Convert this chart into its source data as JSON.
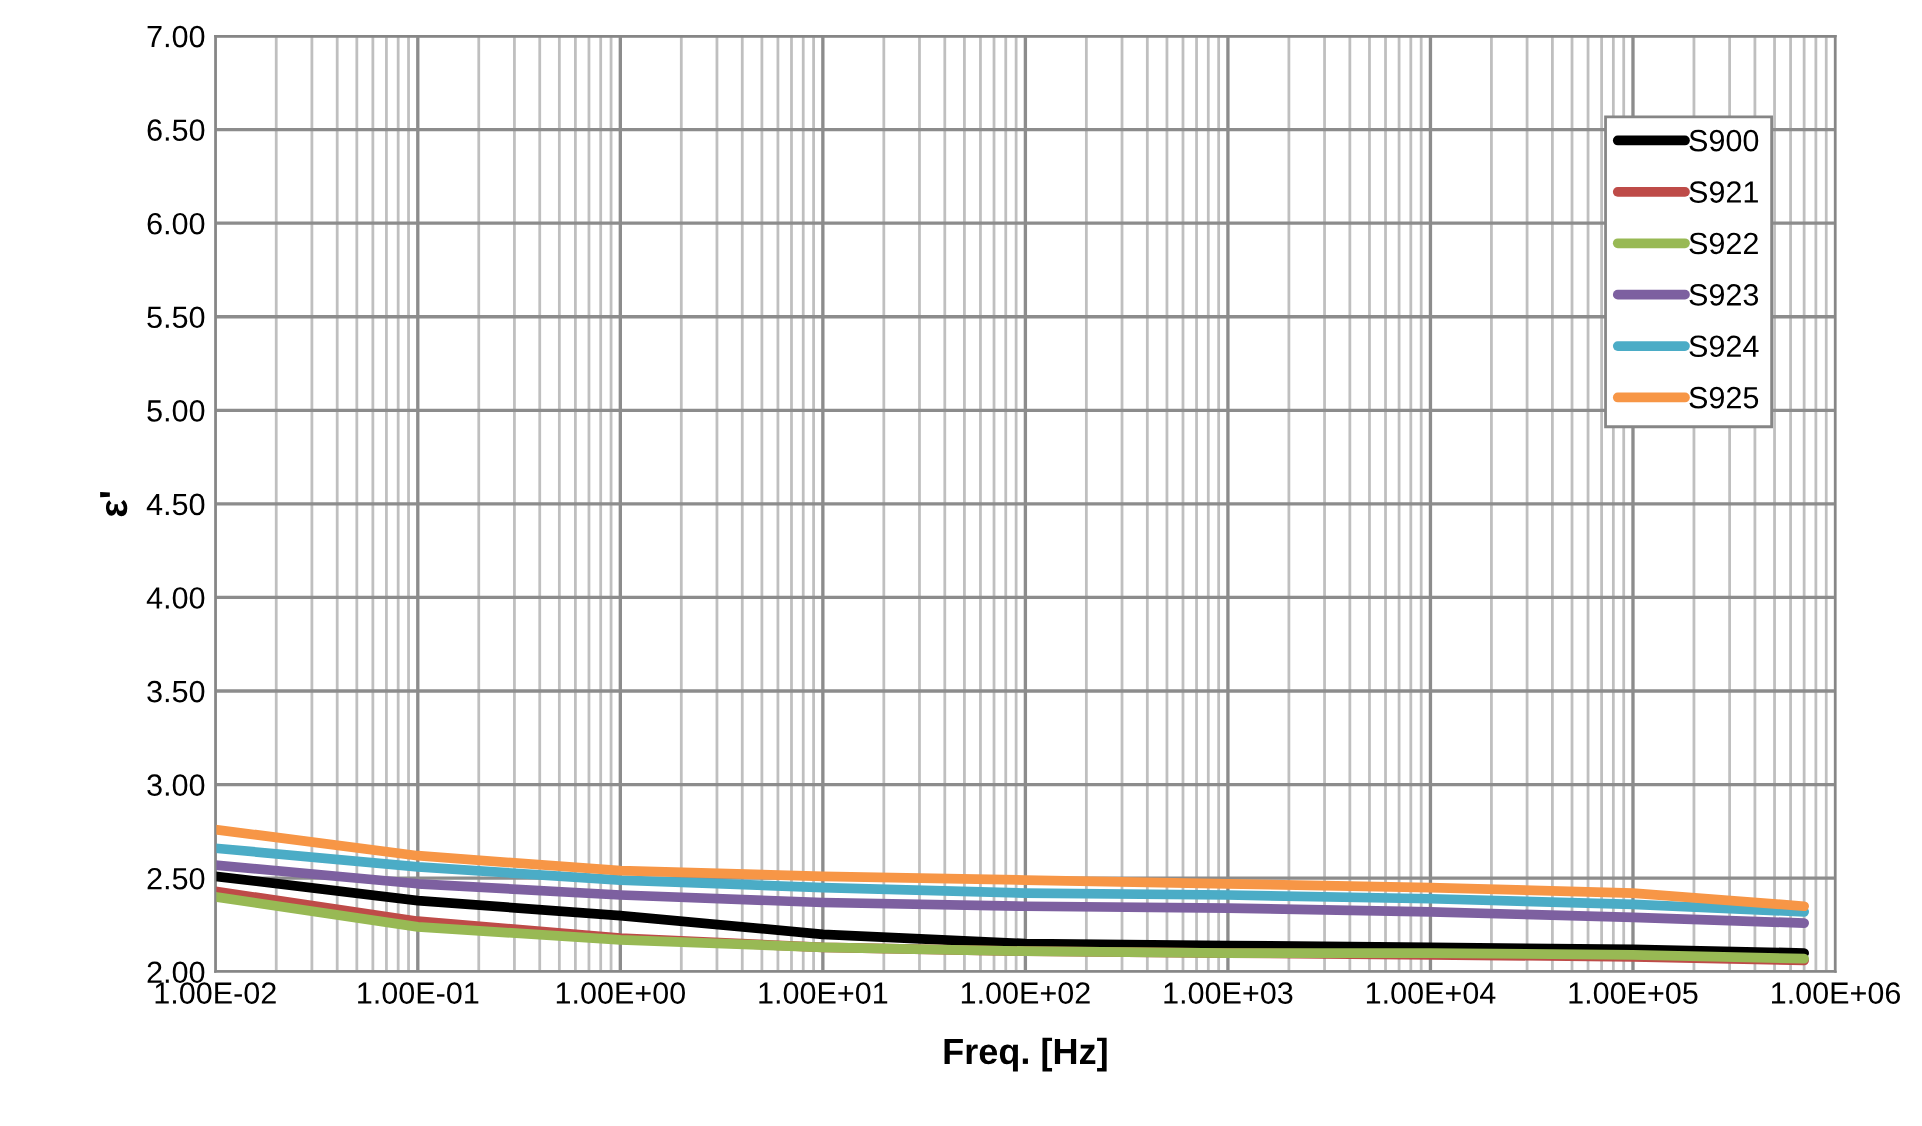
{
  "chart_data": {
    "type": "line",
    "xlabel": "Freq. [Hz]",
    "ylabel": "ε'",
    "log": "x",
    "grid": true,
    "legend": "top right",
    "marker": "none",
    "line_style": "solid",
    "x": [
      0.01,
      0.1,
      1,
      10,
      100,
      1000,
      10000,
      100000,
      700000
    ],
    "xlim": [
      0.01,
      1000000
    ],
    "ylim": [
      2,
      7
    ],
    "xticks": [
      {
        "value": 0.01,
        "label": "1.00E-02"
      },
      {
        "value": 0.1,
        "label": "1.00E-01"
      },
      {
        "value": 1,
        "label": "1.00E+00"
      },
      {
        "value": 10,
        "label": "1.00E+01"
      },
      {
        "value": 100,
        "label": "1.00E+02"
      },
      {
        "value": 1000,
        "label": "1.00E+03"
      },
      {
        "value": 10000,
        "label": "1.00E+04"
      },
      {
        "value": 100000,
        "label": "1.00E+05"
      },
      {
        "value": 1000000,
        "label": "1.00E+06"
      }
    ],
    "yticks": [
      {
        "value": 2,
        "label": "2.00"
      },
      {
        "value": 2.5,
        "label": "2.50"
      },
      {
        "value": 3,
        "label": "3.00"
      },
      {
        "value": 3.5,
        "label": "3.50"
      },
      {
        "value": 4,
        "label": "4.00"
      },
      {
        "value": 4.5,
        "label": "4.50"
      },
      {
        "value": 5,
        "label": "5.00"
      },
      {
        "value": 5.5,
        "label": "5.50"
      },
      {
        "value": 6,
        "label": "6.00"
      },
      {
        "value": 6.5,
        "label": "6.50"
      },
      {
        "value": 7,
        "label": "7.00"
      }
    ],
    "series": [
      {
        "name": "S900",
        "color": "#000000",
        "values": [
          2.51,
          2.38,
          2.3,
          2.2,
          2.15,
          2.14,
          2.13,
          2.12,
          2.1
        ]
      },
      {
        "name": "S921",
        "color": "#be4b48",
        "values": [
          2.43,
          2.27,
          2.18,
          2.13,
          2.11,
          2.1,
          2.09,
          2.08,
          2.06
        ]
      },
      {
        "name": "S922",
        "color": "#98b954",
        "values": [
          2.4,
          2.24,
          2.17,
          2.13,
          2.11,
          2.1,
          2.1,
          2.09,
          2.07
        ]
      },
      {
        "name": "S923",
        "color": "#7d60a0",
        "values": [
          2.57,
          2.47,
          2.41,
          2.37,
          2.35,
          2.34,
          2.32,
          2.29,
          2.26
        ]
      },
      {
        "name": "S924",
        "color": "#4bacc6",
        "values": [
          2.66,
          2.56,
          2.49,
          2.45,
          2.42,
          2.41,
          2.39,
          2.36,
          2.32
        ]
      },
      {
        "name": "S925",
        "color": "#f79646",
        "values": [
          2.76,
          2.62,
          2.54,
          2.51,
          2.49,
          2.47,
          2.45,
          2.42,
          2.35
        ]
      }
    ]
  }
}
